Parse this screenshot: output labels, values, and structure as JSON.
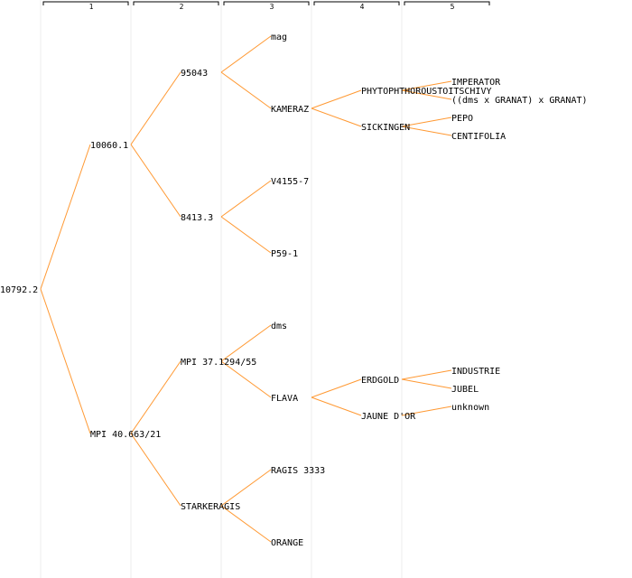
{
  "colors": {
    "edge": "#ff9933",
    "separator": "#eeeeee",
    "header_bracket": "#000000",
    "text": "#000000",
    "background": "#ffffff"
  },
  "generations": [
    "1",
    "2",
    "3",
    "4",
    "5"
  ],
  "root": {
    "label": "10792.2",
    "children": [
      {
        "label": "10060.1",
        "children": [
          {
            "label": "95043",
            "children": [
              {
                "label": "mag",
                "children": []
              },
              {
                "label": "KAMERAZ",
                "children": [
                  {
                    "label": "PHYTOPHTHOROUSTOITSCHIVY",
                    "children": [
                      {
                        "label": "IMPERATOR",
                        "children": []
                      },
                      {
                        "label": "((dms x GRANAT) x GRANAT)",
                        "children": []
                      }
                    ]
                  },
                  {
                    "label": "SICKINGEN",
                    "children": [
                      {
                        "label": "PEPO",
                        "children": []
                      },
                      {
                        "label": "CENTIFOLIA",
                        "children": []
                      }
                    ]
                  }
                ]
              }
            ]
          },
          {
            "label": "8413.3",
            "children": [
              {
                "label": "V4155-7",
                "children": []
              },
              {
                "label": "P59-1",
                "children": []
              }
            ]
          }
        ]
      },
      {
        "label": "MPI 40.663/21",
        "children": [
          {
            "label": "MPI 37.1294/55",
            "children": [
              {
                "label": "dms",
                "children": []
              },
              {
                "label": "FLAVA",
                "children": [
                  {
                    "label": "ERDGOLD",
                    "children": [
                      {
                        "label": "INDUSTRIE",
                        "children": []
                      },
                      {
                        "label": "JUBEL",
                        "children": []
                      }
                    ]
                  },
                  {
                    "label": "JAUNE D'OR",
                    "children": [
                      {
                        "label": "unknown",
                        "children": []
                      }
                    ]
                  }
                ]
              }
            ]
          },
          {
            "label": "STARKERAGIS",
            "children": [
              {
                "label": "RAGIS 3333",
                "children": []
              },
              {
                "label": "ORANGE",
                "children": []
              }
            ]
          }
        ]
      }
    ]
  }
}
